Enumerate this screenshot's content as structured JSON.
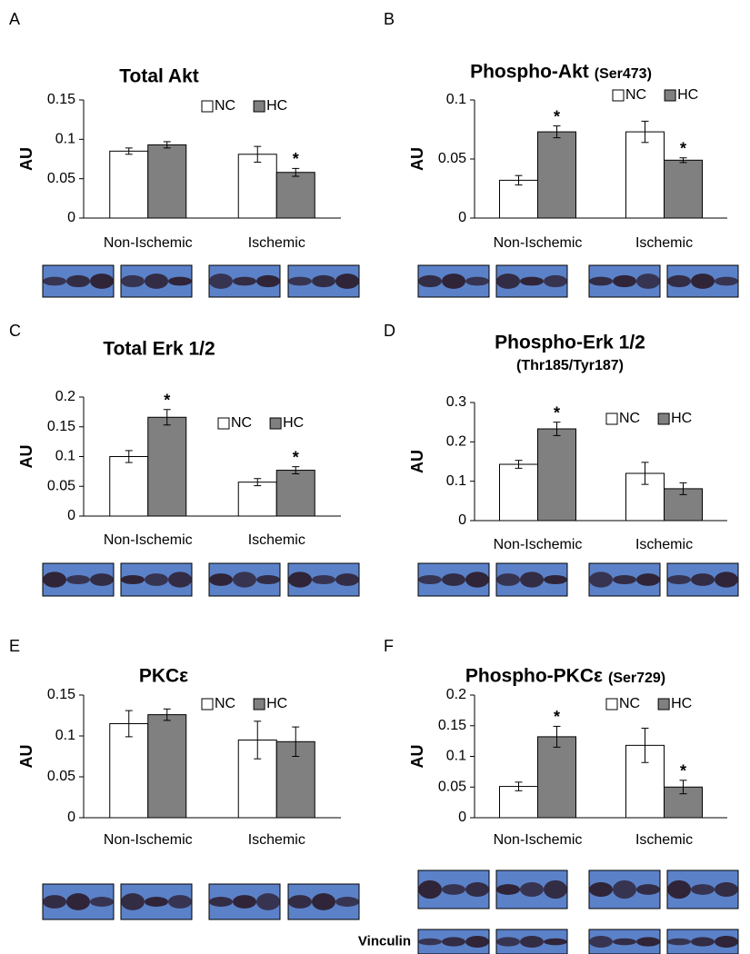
{
  "chart_data": [
    {
      "type": "bar",
      "panel": "A",
      "title": "Total Akt",
      "y_label": "AU",
      "categories": [
        "Non-Ischemic",
        "Ischemic"
      ],
      "series": [
        {
          "name": "NC",
          "color": "#ffffff",
          "values": [
            0.085,
            0.081
          ],
          "errors": [
            0.004,
            0.01
          ]
        },
        {
          "name": "HC",
          "color": "#808080",
          "values": [
            0.093,
            0.058
          ],
          "errors": [
            0.004,
            0.005
          ],
          "significance": [
            null,
            "*"
          ]
        }
      ],
      "ylim": [
        0,
        0.15
      ],
      "yticks": [
        0,
        0.05,
        0.1,
        0.15
      ]
    },
    {
      "type": "bar",
      "panel": "B",
      "title": "Phospho-Akt",
      "subtitle": "(Ser473)",
      "y_label": "AU",
      "categories": [
        "Non-Ischemic",
        "Ischemic"
      ],
      "series": [
        {
          "name": "NC",
          "color": "#ffffff",
          "values": [
            0.032,
            0.073
          ],
          "errors": [
            0.004,
            0.009
          ]
        },
        {
          "name": "HC",
          "color": "#808080",
          "values": [
            0.073,
            0.049
          ],
          "errors": [
            0.005,
            0.002
          ],
          "significance": [
            "*",
            "*"
          ]
        }
      ],
      "ylim": [
        0,
        0.1
      ],
      "yticks": [
        0,
        0.05,
        0.1
      ]
    },
    {
      "type": "bar",
      "panel": "C",
      "title": "Total Erk 1/2",
      "y_label": "AU",
      "categories": [
        "Non-Ischemic",
        "Ischemic"
      ],
      "series": [
        {
          "name": "NC",
          "color": "#ffffff",
          "values": [
            0.1,
            0.057
          ],
          "errors": [
            0.01,
            0.006
          ]
        },
        {
          "name": "HC",
          "color": "#808080",
          "values": [
            0.166,
            0.077
          ],
          "errors": [
            0.013,
            0.006
          ],
          "significance": [
            "*",
            "*"
          ]
        }
      ],
      "ylim": [
        0,
        0.2
      ],
      "yticks": [
        0,
        0.05,
        0.1,
        0.15,
        0.2
      ]
    },
    {
      "type": "bar",
      "panel": "D",
      "title": "Phospho-Erk 1/2",
      "subtitle": "(Thr185/Tyr187)",
      "y_label": "AU",
      "categories": [
        "Non-Ischemic",
        "Ischemic"
      ],
      "series": [
        {
          "name": "NC",
          "color": "#ffffff",
          "values": [
            0.143,
            0.12
          ],
          "errors": [
            0.01,
            0.028
          ]
        },
        {
          "name": "HC",
          "color": "#808080",
          "values": [
            0.233,
            0.081
          ],
          "errors": [
            0.017,
            0.015
          ],
          "significance": [
            "*",
            null
          ]
        }
      ],
      "ylim": [
        0,
        0.3
      ],
      "yticks": [
        0,
        0.1,
        0.2,
        0.3
      ]
    },
    {
      "type": "bar",
      "panel": "E",
      "title": "PKCε",
      "y_label": "AU",
      "categories": [
        "Non-Ischemic",
        "Ischemic"
      ],
      "series": [
        {
          "name": "NC",
          "color": "#ffffff",
          "values": [
            0.115,
            0.095
          ],
          "errors": [
            0.016,
            0.023
          ]
        },
        {
          "name": "HC",
          "color": "#808080",
          "values": [
            0.126,
            0.093
          ],
          "errors": [
            0.007,
            0.018
          ]
        }
      ],
      "ylim": [
        0,
        0.15
      ],
      "yticks": [
        0,
        0.05,
        0.1,
        0.15
      ]
    },
    {
      "type": "bar",
      "panel": "F",
      "title": "Phospho-PKCε",
      "subtitle": "(Ser729)",
      "y_label": "AU",
      "categories": [
        "Non-Ischemic",
        "Ischemic"
      ],
      "series": [
        {
          "name": "NC",
          "color": "#ffffff",
          "values": [
            0.051,
            0.118
          ],
          "errors": [
            0.007,
            0.028
          ]
        },
        {
          "name": "HC",
          "color": "#808080",
          "values": [
            0.132,
            0.05
          ],
          "errors": [
            0.017,
            0.011
          ],
          "significance": [
            "*",
            "*"
          ]
        }
      ],
      "ylim": [
        0,
        0.2
      ],
      "yticks": [
        0,
        0.05,
        0.1,
        0.15,
        0.2
      ],
      "loading_control": "Vinculin"
    }
  ]
}
